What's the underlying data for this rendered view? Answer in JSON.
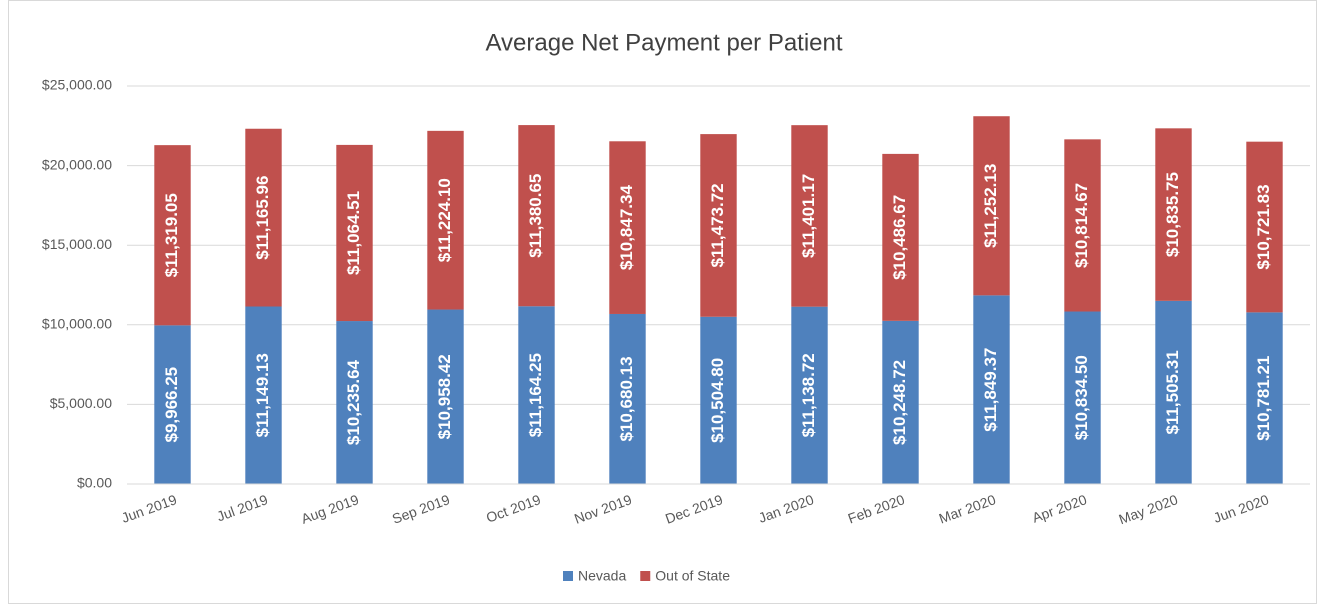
{
  "chart_data": {
    "type": "stacked_bar",
    "title": "Average Net Payment per Patient",
    "categories": [
      "Jun 2019",
      "Jul 2019",
      "Aug 2019",
      "Sep 2019",
      "Oct 2019",
      "Nov 2019",
      "Dec 2019",
      "Jan 2020",
      "Feb 2020",
      "Mar 2020",
      "Apr 2020",
      "May 2020",
      "Jun 2020"
    ],
    "series": [
      {
        "name": "Nevada",
        "color": "#4f81bd",
        "values": [
          9966.25,
          11149.13,
          10235.64,
          10958.42,
          11164.25,
          10680.13,
          10504.8,
          11138.72,
          10248.72,
          11849.37,
          10834.5,
          11505.31,
          10781.21
        ],
        "value_labels": [
          "$9,966.25",
          "$11,149.13",
          "$10,235.64",
          "$10,958.42",
          "$11,164.25",
          "$10,680.13",
          "$10,504.80",
          "$11,138.72",
          "$10,248.72",
          "$11,849.37",
          "$10,834.50",
          "$11,505.31",
          "$10,781.21"
        ]
      },
      {
        "name": "Out of State",
        "color": "#c0504d",
        "values": [
          11319.05,
          11165.96,
          11064.51,
          11224.1,
          11380.65,
          10847.34,
          11473.72,
          11401.17,
          10486.67,
          11252.13,
          10814.67,
          10835.75,
          10721.83
        ],
        "value_labels": [
          "$11,319.05",
          "$11,165.96",
          "$11,064.51",
          "$11,224.10",
          "$11,380.65",
          "$10,847.34",
          "$11,473.72",
          "$11,401.17",
          "$10,486.67",
          "$11,252.13",
          "$10,814.67",
          "$10,835.75",
          "$10,721.83"
        ]
      }
    ],
    "ylim": [
      0,
      25000
    ],
    "yticks": [
      {
        "value": 0,
        "label": "$0.00"
      },
      {
        "value": 5000,
        "label": "$5,000.00"
      },
      {
        "value": 10000,
        "label": "$10,000.00"
      },
      {
        "value": 15000,
        "label": "$15,000.00"
      },
      {
        "value": 20000,
        "label": "$20,000.00"
      },
      {
        "value": 25000,
        "label": "$25,000.00"
      }
    ],
    "grid": true,
    "legend": "bottom"
  }
}
